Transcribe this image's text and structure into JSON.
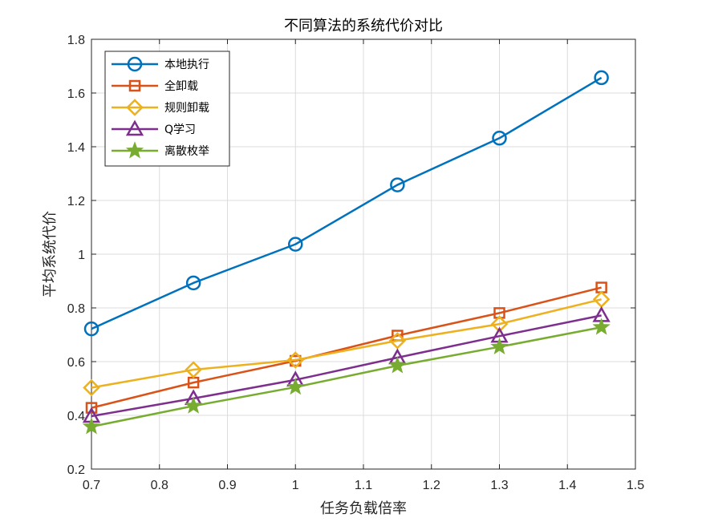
{
  "chart_data": {
    "type": "line",
    "title": "不同算法的系统代价对比",
    "xlabel": "任务负载倍率",
    "ylabel": "平均系统代价",
    "xlim": [
      0.7,
      1.5
    ],
    "ylim": [
      0.2,
      1.8
    ],
    "xticks": [
      "0.7",
      "0.8",
      "0.9",
      "1",
      "1.1",
      "1.2",
      "1.3",
      "1.4",
      "1.5"
    ],
    "yticks": [
      "0.2",
      "0.4",
      "0.6",
      "0.8",
      "1",
      "1.2",
      "1.4",
      "1.6",
      "1.8"
    ],
    "grid": true,
    "legend_position": "top-left",
    "x": [
      0.7,
      0.85,
      1.0,
      1.15,
      1.3,
      1.45
    ],
    "series": [
      {
        "name": "本地执行",
        "values": [
          0.722,
          0.893,
          1.037,
          1.258,
          1.432,
          1.657
        ],
        "color": "#0072BD",
        "marker": "circle"
      },
      {
        "name": "全卸载",
        "values": [
          0.428,
          0.522,
          0.603,
          0.697,
          0.781,
          0.876
        ],
        "color": "#D95319",
        "marker": "square"
      },
      {
        "name": "规则卸载",
        "values": [
          0.503,
          0.57,
          0.606,
          0.678,
          0.74,
          0.832
        ],
        "color": "#EDB120",
        "marker": "diamond"
      },
      {
        "name": "Q学习",
        "values": [
          0.397,
          0.463,
          0.532,
          0.615,
          0.695,
          0.772
        ],
        "color": "#7E2F8E",
        "marker": "triangle"
      },
      {
        "name": "离散枚举",
        "values": [
          0.358,
          0.435,
          0.505,
          0.585,
          0.655,
          0.728
        ],
        "color": "#77AC30",
        "marker": "star"
      }
    ]
  }
}
